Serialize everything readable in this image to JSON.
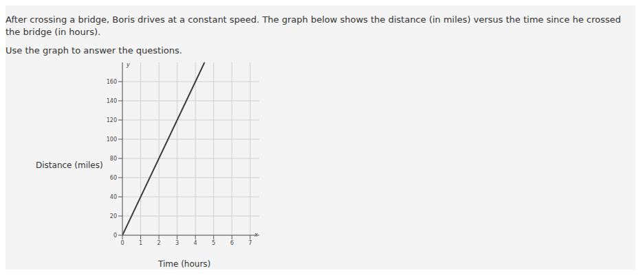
{
  "chart_data": {
    "type": "line",
    "title": "After crossing a bridge, Boris drives at a constant speed. The graph below shows the distance (in miles) versus the time since he crossed the bridge (in hours).",
    "subtitle": "Use the graph to answer the questions.",
    "x_label": "Time (hours)",
    "y_label": "Distance (miles)",
    "annotations": [
      "y",
      "x"
    ],
    "x": [
      0,
      4.5
    ],
    "values": [
      0,
      180
    ],
    "color": "#3a3a3a",
    "xlim": [
      0,
      7.5
    ],
    "xticks": [
      0,
      1,
      2,
      3,
      4,
      5,
      6,
      7
    ],
    "ylim": [
      0,
      180
    ],
    "yticks": [
      0,
      20,
      40,
      60,
      80,
      100,
      120,
      140,
      160
    ],
    "grid": true
  }
}
